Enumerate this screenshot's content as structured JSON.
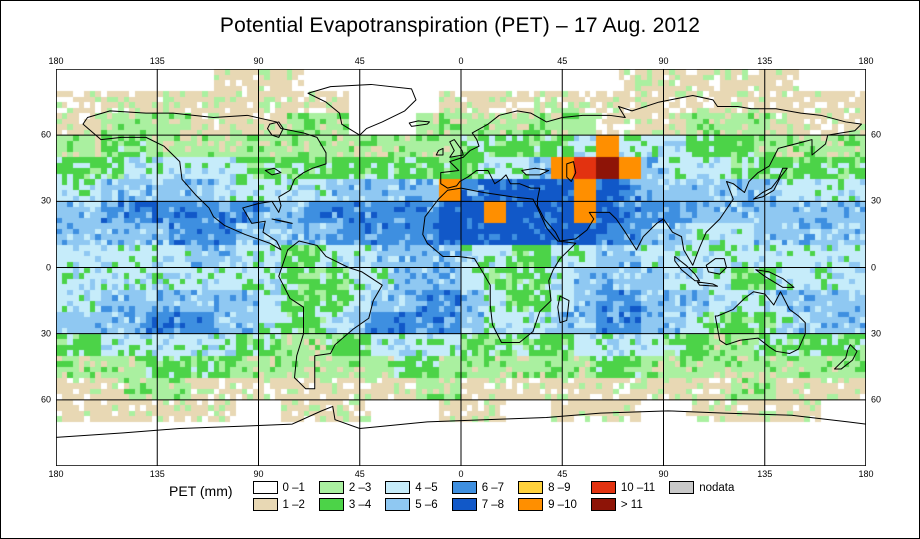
{
  "title": "Potential Evapotranspiration (PET) – 17 Aug. 2012",
  "legend": {
    "title": "PET (mm)",
    "items": [
      {
        "label": "0 –1",
        "color": "#ffffff"
      },
      {
        "label": "1 –2",
        "color": "#e8d8b4"
      },
      {
        "label": "2 –3",
        "color": "#aaf0a0"
      },
      {
        "label": "3 –4",
        "color": "#4cd348"
      },
      {
        "label": "4 –5",
        "color": "#c6ecfa"
      },
      {
        "label": "5 –6",
        "color": "#8fc8f2"
      },
      {
        "label": "6 –7",
        "color": "#3e8fe0"
      },
      {
        "label": "7 –8",
        "color": "#1158c8"
      },
      {
        "label": "8 –9",
        "color": "#ffd23c"
      },
      {
        "label": "9 –10",
        "color": "#ff8f00"
      },
      {
        "label": "10 –11",
        "color": "#e23210"
      },
      {
        "label": "> 11",
        "color": "#8e1407"
      }
    ],
    "nodata": {
      "label": "nodata",
      "color": "#c9c9c9"
    }
  },
  "map": {
    "projection": "equirectangular",
    "lon_range": [
      -180,
      180
    ],
    "lat_range": [
      -90,
      90
    ],
    "grid_lons": [
      -180,
      -135,
      -90,
      -45,
      0,
      45,
      90,
      135,
      180
    ],
    "grid_lats": [
      -60,
      -30,
      0,
      30,
      60
    ],
    "ticks": {
      "lon": [
        "180",
        "135",
        "90",
        "45",
        "0",
        "45",
        "90",
        "135",
        "180"
      ],
      "lat": [
        "60",
        "30",
        "0",
        "30",
        "60"
      ]
    },
    "palette": [
      "#ffffff",
      "#e8d8b4",
      "#aaf0a0",
      "#4cd348",
      "#c6ecfa",
      "#8fc8f2",
      "#3e8fe0",
      "#1158c8",
      "#ffd23c",
      "#ff8f00",
      "#e23210",
      "#8e1407",
      "#c9c9c9"
    ],
    "category_labels": [
      "0-1",
      "1-2",
      "2-3",
      "3-4",
      "4-5",
      "5-6",
      "6-7",
      "7-8",
      "8-9",
      "9-10",
      "10-11",
      ">11",
      "nodata"
    ],
    "grid_cell_deg": 10,
    "grid_rows": [
      "000000011110000000000000011111111000",
      "111111111111100001111111111111111111",
      "112222111122200022222222111122221111",
      "223322222222222222333334944433322222",
      "33344444333333333334459AB95444333333",
      "445555544444555559677779765555554444",
      "556666666556666667797779766655555555",
      "555556665555666667777777665544455555",
      "444444554433445555443344554444444444",
      "444444444433344555433345555444334444",
      "445555555433345566543345665554445555",
      "555566655433456666544455665543334555",
      "334444443322334444333334444332233333",
      "222233332222222332222222332222222222",
      "111222111111111122111111111111221111",
      "111111110011110001110011110011111100",
      "000000000000000000000000000000000000",
      "000000000000000000000000000000000000"
    ],
    "coastlines": [
      "M12 25 L20 32 L29 31 L40 31 L48 35 L55 42 L56 50 L62 57 L68 63 L70 67 L75 71 L84 75 L95 79 L100 82 L98 78 L92 74 L93 69 L87 70 L83 63 L90 61 L96 60 L99 65 L100 62 L99 58 L104 55 L106 50 L110 47 L114 45 L120 43 L120 38 L116 31 L110 29 L100 27 L98 24 L85 21 L70 22 L52 20 L40 20 L24 19 L14 22 Z",
      "M103 82 L101 88 L99 94 L104 104 L110 108 L110 120 L107 130 L106 140 L111 145 L115 145 L115 130 L122 129 L124 125 L132 118 L139 113 L141 105 L145 98 L136 92 L130 90 L120 85 L116 80 L108 78 Z",
      "M135 30 L127 25 L126 20 L120 15 L112 11 L122 8 L140 7 L158 9 L160 14 L155 19 L145 24 L138 27 Z",
      "M174 54 L171 52 L171 47 L179 46 L175 42 L181 40 L184 37 L188 35 L187 32 L185 29 L192 25 L197 21 L205 19 L211 20 L218 24 L225 22 L234 21 L246 21 L253 22 L250 17 L256 19 L268 15 L283 12 L292 14 L294 17 L303 17 L309 18 L320 18 L331 20 L340 21 L351 24 L358 25 L355 28 L343 30 L342 34 L336 39 L336 32 L321 36 L317 44 L312 47 L308 51 L306 56 L301 52 L298 51 L301 59 L295 68 L289 74 L286 81 L283 89 L279 82 L278 76 L274 74 L270 68 L267 70 L261 76 L258 82 L253 74 L249 68 L246 65 L242 65 L237 65 L239 68 L236 73 L231 77 L224 78 L222 74 L217 68 L214 62 L214 59 L215 54 L211 54 L206 52 L202 52 L200 48 L198 50 L195 52 L192 46 L187 46 L183 49 L179.5 51 L178 53 Z",
      "M174 55 L170 59 L164 67 L163 75 L165 79 L172 85 L179 85 L186 86 L189 91 L193 98 L193 107 L194 116 L198 124 L206 124 L212 119 L215 110 L220 105 L219 96 L221 91 L224 86 L231 79 L223 78 L218 72 L214 63 L212 59 L203 58 L190 56 L180 54 Z",
      "M293 112 L295 123 L298 125 L304 123 L312 122 L317 126 L320 128 L326 129 L330 127 L333 120 L333 115 L330 112 L326 109 L322 101 L319 107 L315 102 L310 101 L306 104 L301 109 L294 112 Z",
      "M0 167 L30 165 L55 163 L82 162 L105 161 L118 155 L123 153 L124 159 L135 163 L165 160 L192 159 L218 158 L242 156 L272 155 L297 156 L327 157 L352 160 L360 161",
      "M175 40 L177 37 L175 33 L177 32 L180.5 37 L181 39 Z",
      "M170 37 L172 36 L172 39 L169 39 Z",
      "M158 26 L165 25 L166 24 L161 23.5 L157 24.5 Z",
      "M310 59 L314 56 L318 54 L321 50 L323 45 L325 45 L322 49 L319 55 L314 58 Z",
      "M224 103 L228 105 L227 114 L224 115 L223 108 Z",
      "M289 89 L293 86 L297 86 L298 90 L295 93 L290 92 Z",
      "M275 85 L280 89 L284 93 L286 96 L284 96 L278 91 L275 87 Z",
      "M285 96.5 L292 97.5 L294 98.5 L286 98 Z",
      "M311 91 L317 92 L323 95 L328 99 L323 99 L315 94 Z",
      "M353 125 L356 128 L354 132 L349 136 L346 136 L351 131 L352 127 Z",
      "M96 68 L101 69 L105 70 L100 69 Z",
      "M95 25 L99 24 L101 27 L99 31 L96 30 L94 27 Z",
      "M93 46 L97 45 L100 47 L96 48 Z",
      "M207 46 L213 45 L219 46 L215 48 L209 48 Z",
      "M227 43 L230 42 L231 47 L229 51 L227 49 Z"
    ]
  }
}
